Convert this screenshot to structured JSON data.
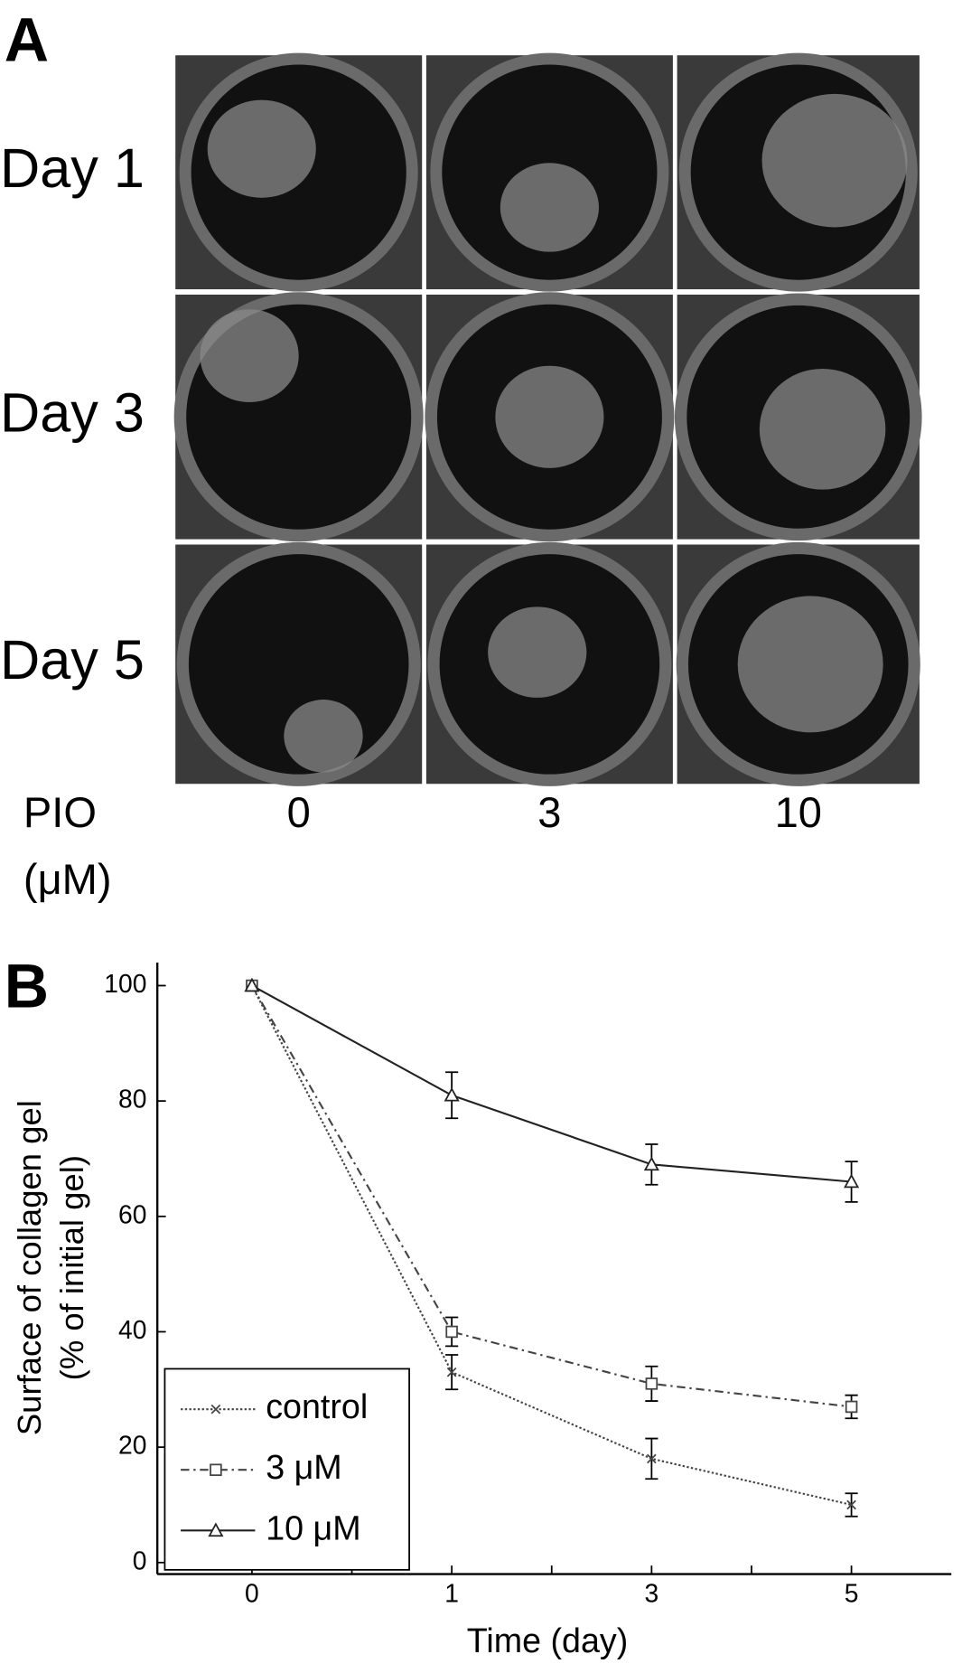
{
  "panel_a": {
    "label": "A",
    "rows": [
      "Day 1",
      "Day 3",
      "Day 5"
    ],
    "x_title": [
      "PIO",
      "(μM)"
    ],
    "columns": [
      "0",
      "3",
      "10"
    ]
  },
  "chart_data": {
    "type": "line",
    "panel_label": "B",
    "xlabel": "Time (day)",
    "ylabel": [
      "Surface of collagen gel",
      "(% of initial gel)"
    ],
    "categories": [
      "0",
      "1",
      "3",
      "5"
    ],
    "ylim": [
      -2,
      104
    ],
    "yticks": [
      0,
      20,
      40,
      60,
      80,
      100
    ],
    "legend": "lower left",
    "series": [
      {
        "name": "control",
        "color": "#444444",
        "line_style": "dotted",
        "marker": "x",
        "values": [
          100,
          33,
          18,
          10
        ],
        "errors": [
          0,
          3,
          3.5,
          2
        ]
      },
      {
        "name": "3 μM",
        "color": "#444444",
        "line_style": "dashdot",
        "marker": "square",
        "values": [
          100,
          40,
          31,
          27
        ],
        "errors": [
          0,
          2.5,
          3,
          2
        ]
      },
      {
        "name": "10 μM",
        "color": "#222222",
        "line_style": "solid",
        "marker": "triangle",
        "values": [
          100,
          81,
          69,
          66
        ],
        "errors": [
          0,
          4,
          3.5,
          3.5
        ]
      }
    ]
  }
}
